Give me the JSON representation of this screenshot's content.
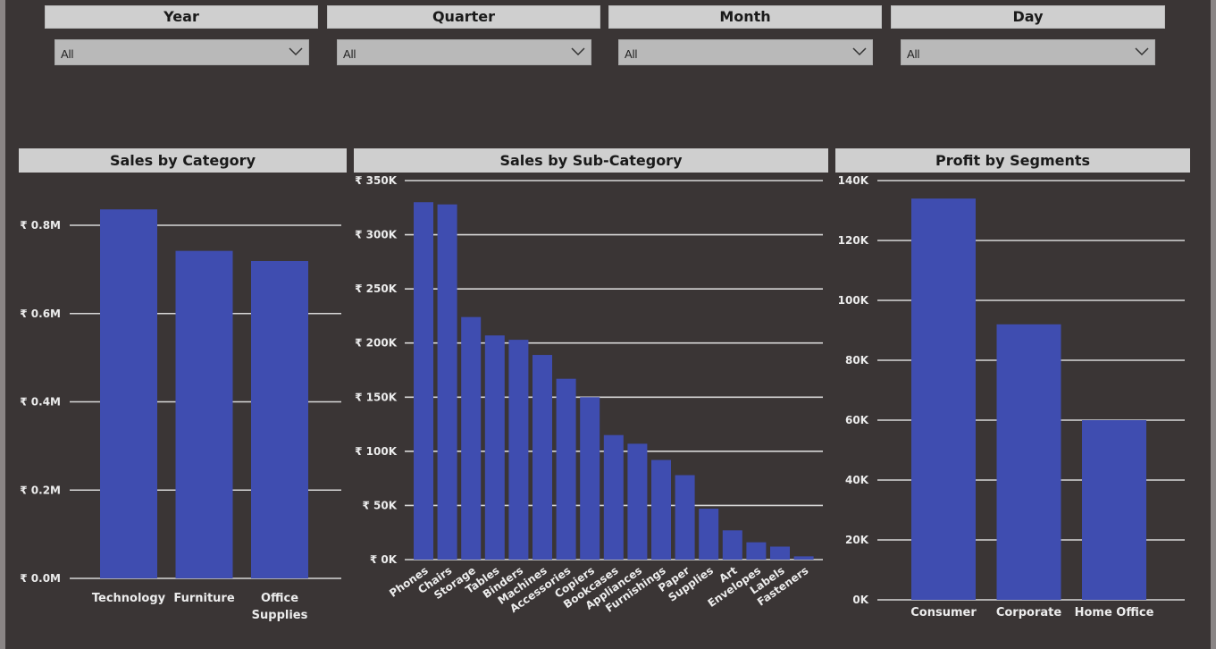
{
  "slicers": [
    {
      "label": "Year",
      "value": "All"
    },
    {
      "label": "Quarter",
      "value": "All"
    },
    {
      "label": "Month",
      "value": "All"
    },
    {
      "label": "Day",
      "value": "All"
    }
  ],
  "colors": {
    "bar": "#3f4db0",
    "grid": "#d8d8d8",
    "text": "#ececec",
    "header_bg": "#cfcfcf"
  },
  "chart_data": [
    {
      "type": "bar",
      "title": "Sales by Category",
      "categories": [
        "Technology",
        "Furniture",
        "Office Supplies"
      ],
      "values": [
        836000,
        742000,
        719000
      ],
      "ylim": [
        0,
        800000
      ],
      "yticks": [
        0,
        200000,
        400000,
        600000,
        800000
      ],
      "ytick_labels": [
        "₹ 0.0M",
        "₹ 0.2M",
        "₹ 0.4M",
        "₹ 0.6M",
        "₹ 0.8M"
      ],
      "grid": true
    },
    {
      "type": "bar",
      "title": "Sales by Sub-Category",
      "categories": [
        "Phones",
        "Chairs",
        "Storage",
        "Tables",
        "Binders",
        "Machines",
        "Accessories",
        "Copiers",
        "Bookcases",
        "Appliances",
        "Furnishings",
        "Paper",
        "Supplies",
        "Art",
        "Envelopes",
        "Labels",
        "Fasteners"
      ],
      "values": [
        330000,
        328000,
        224000,
        207000,
        203000,
        189000,
        167000,
        150000,
        115000,
        107000,
        92000,
        78000,
        47000,
        27000,
        16000,
        12000,
        3000
      ],
      "ylim": [
        0,
        350000
      ],
      "yticks": [
        0,
        50000,
        100000,
        150000,
        200000,
        250000,
        300000,
        350000
      ],
      "ytick_labels": [
        "₹ 0K",
        "₹ 50K",
        "₹ 100K",
        "₹ 150K",
        "₹ 200K",
        "₹ 250K",
        "₹ 300K",
        "₹ 350K"
      ],
      "grid": true
    },
    {
      "type": "bar",
      "title": "Profit by Segments",
      "categories": [
        "Consumer",
        "Corporate",
        "Home Office"
      ],
      "values": [
        134000,
        92000,
        60000
      ],
      "ylim": [
        0,
        140000
      ],
      "yticks": [
        0,
        20000,
        40000,
        60000,
        80000,
        100000,
        120000,
        140000
      ],
      "ytick_labels": [
        "0K",
        "20K",
        "40K",
        "60K",
        "80K",
        "100K",
        "120K",
        "140K"
      ],
      "grid": true
    }
  ]
}
